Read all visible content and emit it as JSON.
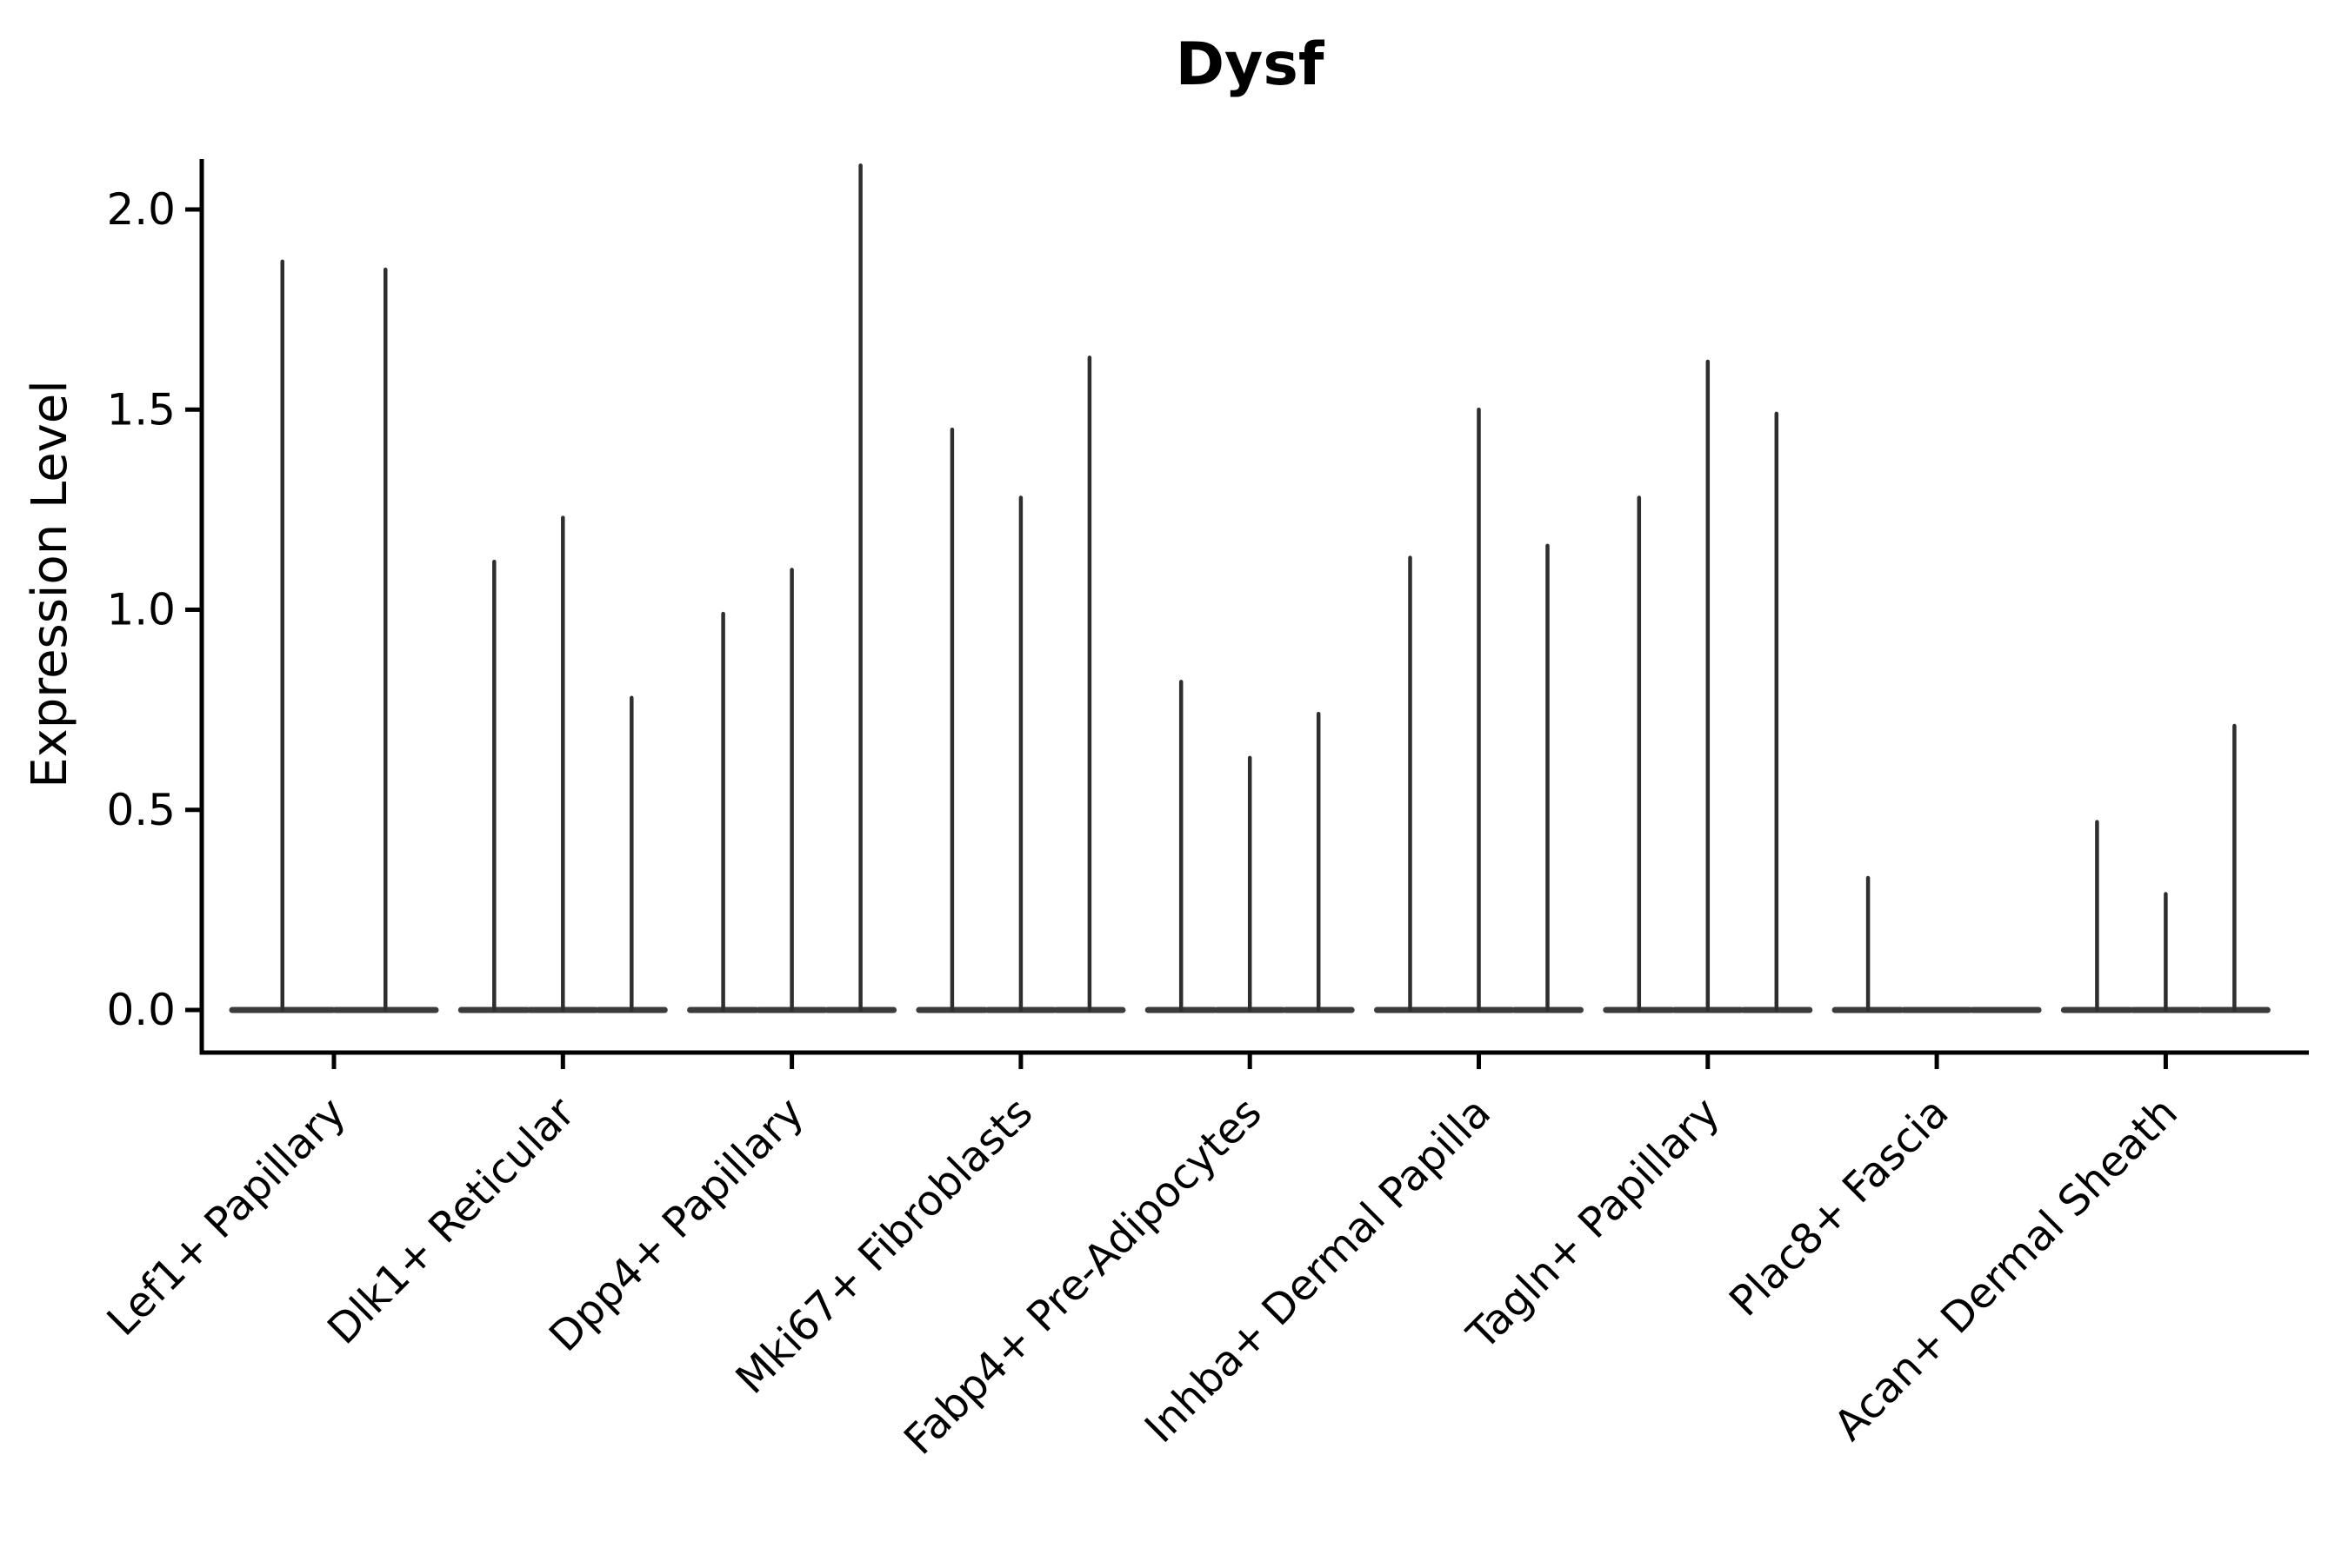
{
  "chart_data": {
    "type": "violin",
    "title": "Dysf",
    "ylabel": "Expression Level",
    "xlabel": "",
    "ylim": [
      -0.11,
      2.12
    ],
    "yticks": [
      0.0,
      0.5,
      1.0,
      1.5,
      2.0
    ],
    "grid": false,
    "legend": false,
    "categories": [
      "Lef1+ Papillary",
      "Dlk1+ Reticular",
      "Dpp4+ Papillary",
      "Mki67+ Fibroblasts",
      "Fabp4+ Pre-Adipocytes",
      "Inhba+ Dermal Papilla",
      "Tagln+ Papillary",
      "Plac8+ Fascia",
      "Acan+ Dermal Sheath"
    ],
    "groups": [
      {
        "category": "Lef1+ Papillary",
        "violin_maxima": [
          1.87,
          1.85
        ]
      },
      {
        "category": "Dlk1+ Reticular",
        "violin_maxima": [
          1.12,
          1.23,
          0.78
        ]
      },
      {
        "category": "Dpp4+ Papillary",
        "violin_maxima": [
          0.99,
          1.1,
          2.11
        ]
      },
      {
        "category": "Mki67+ Fibroblasts",
        "violin_maxima": [
          1.45,
          1.28,
          1.63
        ]
      },
      {
        "category": "Fabp4+ Pre-Adipocytes",
        "violin_maxima": [
          0.82,
          0.63,
          0.74
        ]
      },
      {
        "category": "Inhba+ Dermal Papilla",
        "violin_maxima": [
          1.13,
          1.5,
          1.16
        ]
      },
      {
        "category": "Tagln+ Papillary",
        "violin_maxima": [
          1.28,
          1.62,
          1.49
        ]
      },
      {
        "category": "Plac8+ Fascia",
        "violin_maxima": [
          0.33,
          0.0,
          0.0
        ]
      },
      {
        "category": "Acan+ Dermal Sheath",
        "violin_maxima": [
          0.47,
          0.29,
          0.71
        ]
      }
    ],
    "description": "Each violin is a density concentrated at 0 (flat wide base) with a thin vertical spike reaching that violin's maximum expression value.",
    "colors": {
      "spike": "#2e2e2e",
      "base": "#3b3b3b",
      "axis": "#000000",
      "background": "#ffffff"
    }
  }
}
